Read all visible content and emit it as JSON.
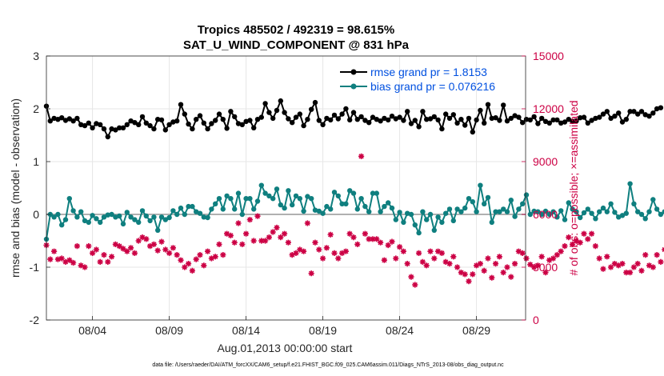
{
  "chart_data": {
    "type": "line",
    "title": "Tropics 485502 / 492319 = 98.615%",
    "subtitle": "SAT_U_WIND_COMPONENT @ 831 hPa",
    "xlabel": "Aug.01,2013 00:00:00 start",
    "ylabel": "rmse and bias (model - observation)",
    "y2label": "# of obs: o=possible; ×=assimilated",
    "ylim": [
      -2,
      3
    ],
    "y2lim": [
      0,
      15000
    ],
    "xlim": [
      1,
      32.2
    ],
    "x_ticks": [
      4,
      9,
      14,
      19,
      24,
      29
    ],
    "x_tick_labels": [
      "08/04",
      "08/09",
      "08/14",
      "08/19",
      "08/24",
      "08/29"
    ],
    "y_ticks": [
      -2,
      -1,
      0,
      1,
      2,
      3
    ],
    "y_tick_labels": [
      "-2",
      "-1",
      "0",
      "1",
      "2",
      "3"
    ],
    "y2_ticks": [
      0,
      3000,
      6000,
      9000,
      12000,
      15000
    ],
    "y2_tick_labels": [
      "0",
      "3000",
      "6000",
      "9000",
      "12000",
      "15000"
    ],
    "legend_position": "top-right",
    "colors": {
      "rmse": "#000000",
      "bias": "#0f7f7f",
      "obs": "#cc0044",
      "zero": "#b0b0b0",
      "legend_text": "#0050e0"
    },
    "x_start": 1.0,
    "x_step": 0.25,
    "series": [
      {
        "name": "rmse grand pr = 1.8153",
        "axis": "left",
        "marker": "circle",
        "values": [
          2.05,
          1.77,
          1.82,
          1.8,
          1.83,
          1.78,
          1.81,
          1.77,
          1.82,
          1.7,
          1.68,
          1.73,
          1.64,
          1.72,
          1.7,
          1.62,
          1.47,
          1.62,
          1.6,
          1.64,
          1.64,
          1.7,
          1.77,
          1.74,
          1.7,
          1.85,
          1.73,
          1.68,
          1.62,
          1.8,
          1.79,
          1.6,
          1.7,
          1.75,
          1.77,
          2.08,
          1.9,
          1.71,
          1.62,
          1.8,
          1.87,
          1.73,
          1.62,
          1.72,
          1.78,
          1.9,
          1.8,
          1.63,
          1.95,
          1.85,
          1.72,
          1.7,
          1.76,
          1.78,
          1.64,
          1.8,
          1.84,
          2.1,
          1.93,
          1.82,
          1.97,
          2.15,
          1.93,
          1.81,
          1.74,
          1.84,
          1.9,
          1.68,
          1.8,
          1.99,
          2.12,
          1.78,
          1.7,
          1.82,
          1.79,
          1.88,
          1.81,
          1.9,
          2.0,
          1.79,
          1.93,
          1.8,
          1.85,
          1.78,
          1.74,
          1.84,
          1.8,
          1.77,
          1.82,
          1.79,
          1.86,
          1.81,
          1.84,
          1.78,
          1.95,
          1.72,
          1.78,
          1.66,
          1.95,
          1.8,
          1.81,
          1.85,
          1.79,
          1.62,
          1.9,
          1.82,
          1.89,
          1.73,
          1.8,
          1.69,
          1.82,
          1.56,
          1.79,
          1.97,
          1.73,
          2.08,
          1.82,
          1.83,
          1.78,
          2.07,
          1.77,
          1.82,
          1.87,
          1.84,
          1.74,
          1.8,
          1.79,
          1.85,
          1.72,
          1.82,
          1.76,
          1.73,
          1.79,
          1.79,
          1.73,
          1.75,
          1.8,
          1.76,
          1.77,
          1.83,
          1.84,
          1.73,
          1.78,
          1.82,
          1.84,
          1.9,
          1.95,
          1.82,
          1.86,
          1.92,
          1.75,
          1.8,
          1.95,
          1.95,
          1.9,
          1.95,
          1.89,
          1.86,
          1.92,
          2.0,
          2.02
        ]
      },
      {
        "name": "bias grand pr = 0.076216",
        "axis": "left",
        "marker": "circle",
        "values": [
          -0.47,
          0.0,
          -0.05,
          0.0,
          -0.2,
          -0.1,
          0.3,
          0.07,
          -0.05,
          0.05,
          -0.12,
          -0.15,
          -0.02,
          -0.08,
          -0.15,
          -0.05,
          -0.01,
          0.0,
          -0.05,
          -0.03,
          -0.18,
          0.04,
          -0.05,
          -0.1,
          -0.15,
          0.07,
          -0.03,
          -0.12,
          -0.05,
          -0.3,
          -0.05,
          -0.1,
          -0.06,
          0.07,
          0.0,
          0.12,
          0.0,
          0.15,
          0.15,
          0.05,
          0.02,
          -0.05,
          -0.06,
          0.1,
          0.2,
          0.3,
          0.1,
          0.35,
          0.3,
          0.1,
          0.4,
          0.0,
          0.3,
          0.3,
          0.1,
          0.25,
          0.55,
          0.4,
          0.35,
          0.3,
          0.48,
          0.18,
          0.12,
          0.45,
          0.18,
          0.35,
          0.3,
          0.06,
          0.34,
          0.3,
          0.08,
          0.06,
          0.02,
          0.15,
          0.1,
          0.42,
          0.35,
          0.2,
          0.2,
          0.45,
          0.4,
          0.1,
          0.3,
          0.15,
          0.05,
          0.4,
          0.4,
          0.05,
          0.15,
          0.22,
          0.12,
          -0.1,
          0.04,
          -0.15,
          0.02,
          0.0,
          -0.2,
          -0.35,
          0.05,
          -0.1,
          0.0,
          -0.3,
          -0.05,
          -0.15,
          0.02,
          0.1,
          -0.12,
          0.1,
          0.05,
          0.12,
          0.3,
          0.24,
          0.05,
          0.55,
          0.2,
          0.32,
          -0.15,
          0.05,
          0.05,
          0.1,
          0.05,
          0.27,
          -0.04,
          0.1,
          0.2,
          0.37,
          0.0,
          0.06,
          0.05,
          0.0,
          0.06,
          0.0,
          0.05,
          -0.05,
          0.07,
          -0.1,
          0.22,
          0.1,
          0.05,
          -0.06,
          0.03,
          0.1,
          0.02,
          -0.08,
          0.05,
          0.12,
          0.05,
          0.2,
          0.04,
          -0.05,
          -0.02,
          0.02,
          0.58,
          0.2,
          0.05,
          0.0,
          -0.08,
          0.05,
          0.28,
          0.1,
          0.0,
          0.05
        ]
      },
      {
        "name": "# of obs",
        "axis": "right",
        "marker": "star",
        "values": [
          4250,
          3450,
          3900,
          3450,
          3500,
          3300,
          3400,
          3250,
          4200,
          3100,
          3000,
          4200,
          3800,
          4000,
          3300,
          3700,
          3300,
          3600,
          4300,
          4200,
          4050,
          3900,
          4100,
          3800,
          4500,
          4700,
          4600,
          4200,
          4300,
          3950,
          4450,
          4000,
          3800,
          4100,
          3700,
          3400,
          3000,
          3200,
          2800,
          3450,
          3700,
          3100,
          3900,
          3500,
          3600,
          4300,
          3700,
          4900,
          4800,
          4400,
          5500,
          4300,
          4900,
          5700,
          4500,
          5900,
          4500,
          4500,
          4700,
          5000,
          5250,
          4700,
          4900,
          4400,
          3700,
          3800,
          4000,
          3900,
          5500,
          2650,
          4400,
          4000,
          3500,
          4100,
          4850,
          3800,
          3500,
          3800,
          3900,
          4900,
          4700,
          4300,
          9300,
          4900,
          4600,
          4600,
          4600,
          4400,
          3400,
          4250,
          4450,
          3500,
          4150,
          3900,
          3200,
          2450,
          2000,
          3800,
          3300,
          3100,
          3900,
          3500,
          3900,
          3800,
          3300,
          3200,
          3600,
          3000,
          2700,
          2600,
          2200,
          2600,
          3100,
          3200,
          2800,
          3500,
          2400,
          3200,
          3600,
          2700,
          3000,
          2450,
          3200,
          3900,
          3800,
          3500,
          3150,
          3000,
          3100,
          3600,
          2700,
          3400,
          3500,
          3700,
          3900,
          4200,
          4700,
          4300,
          4500,
          4400,
          4900,
          4600,
          4900,
          4200,
          3500,
          2900,
          3600,
          3000,
          3200,
          3100,
          3200,
          2700,
          2700,
          3000,
          3200,
          2800,
          3700,
          3100,
          3000,
          3700,
          3300,
          4000,
          3200,
          4200,
          4200,
          3500,
          0
        ]
      }
    ]
  },
  "footer": "data file: /Users/raeder/DAI/ATM_forcXX/CAM6_setup/f.e21.FHIST_BGC.f09_025.CAM6assim.011/Diags_NTrS_2013-08/obs_diag_output.nc"
}
